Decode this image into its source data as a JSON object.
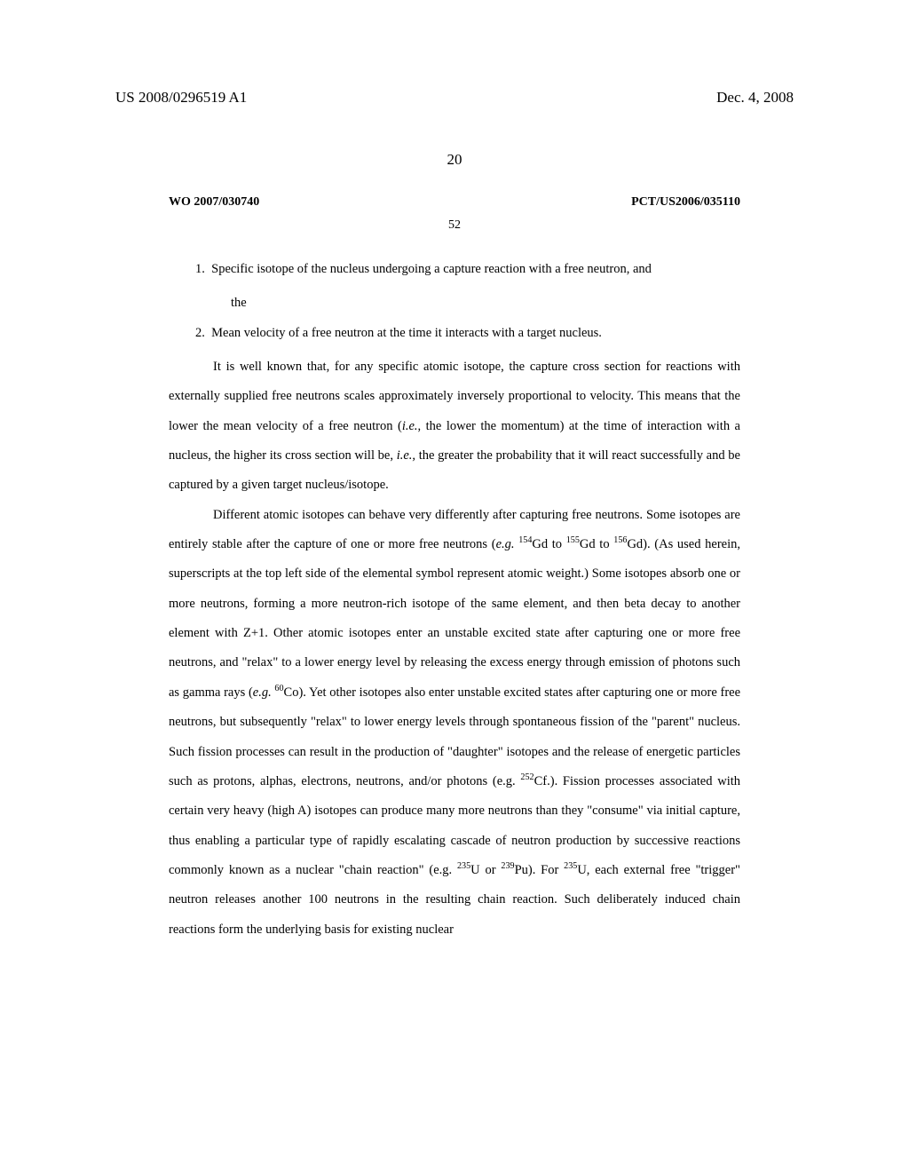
{
  "header": {
    "pub_number": "US 2008/0296519 A1",
    "pub_date": "Dec. 4, 2008",
    "sheet_number": "20"
  },
  "inner": {
    "wo_number": "WO 2007/030740",
    "pct_number": "PCT/US2006/035110",
    "page_number": "52"
  },
  "list": {
    "item1_prefix": "1.",
    "item1_text": "Specific isotope of the nucleus undergoing a capture reaction with a free neutron, and",
    "item1_sub": "the",
    "item2_prefix": "2.",
    "item2_text": "Mean velocity of a free neutron at the time it interacts with a target nucleus."
  },
  "body": {
    "p1_a": "It is well known that, for any specific atomic isotope, the capture cross section for reactions with externally supplied free neutrons scales approximately inversely proportional to velocity.  This means that the lower the mean velocity of a free neutron (",
    "p1_ie1": "i.e.",
    "p1_b": ", the lower the momentum) at the time of interaction with a nucleus, the higher its cross section will be, ",
    "p1_ie2": "i.e.,",
    "p1_c": " the greater the probability that it will react successfully and be captured by a given target nucleus/isotope.",
    "p2_a": "Different atomic isotopes can behave very differently after capturing free neutrons. Some isotopes are entirely stable after the capture of one or more free neutrons (",
    "p2_eg1": "e.g.",
    "p2_sp": " ",
    "p2_iso1": "154",
    "p2_gd1": "Gd to ",
    "p2_iso2": "155",
    "p2_gd2": "Gd to ",
    "p2_iso3": "156",
    "p2_gd3": "Gd).  (As used herein, superscripts at the top left side of the elemental symbol represent atomic weight.) Some isotopes absorb one or more neutrons, forming a more neutron-rich isotope of the same element, and then beta decay to another element with Z+1.  Other atomic isotopes enter an unstable excited state after capturing one or more free neutrons, and \"relax\" to a lower energy level by releasing the excess energy through emission of photons such as gamma rays (",
    "p2_eg2": "e.g.",
    "p2_iso4": "60",
    "p2_co": "Co).  Yet other isotopes also enter unstable excited states after capturing one or more free neutrons, but subsequently \"relax\" to lower energy levels through spontaneous fission of the \"parent\" nucleus.  Such fission processes can result in the production of \"daughter\" isotopes and the release of energetic particles such as protons, alphas, electrons, neutrons, and/or photons (e.g. ",
    "p2_iso5": "252",
    "p2_cf": "Cf.).  Fission processes associated with certain very heavy (high A) isotopes can produce many more neutrons than they \"consume\" via initial capture, thus enabling a particular type of rapidly escalating cascade of neutron production by successive reactions commonly known as a nuclear \"chain reaction\" (e.g. ",
    "p2_iso6": "235",
    "p2_u1": "U or ",
    "p2_iso7": "239",
    "p2_pu": "Pu).  For ",
    "p2_iso8": "235",
    "p2_u2": "U, each external free \"trigger\" neutron releases another 100 neutrons in the resulting chain reaction. Such deliberately induced chain reactions form the underlying basis for existing nuclear"
  }
}
